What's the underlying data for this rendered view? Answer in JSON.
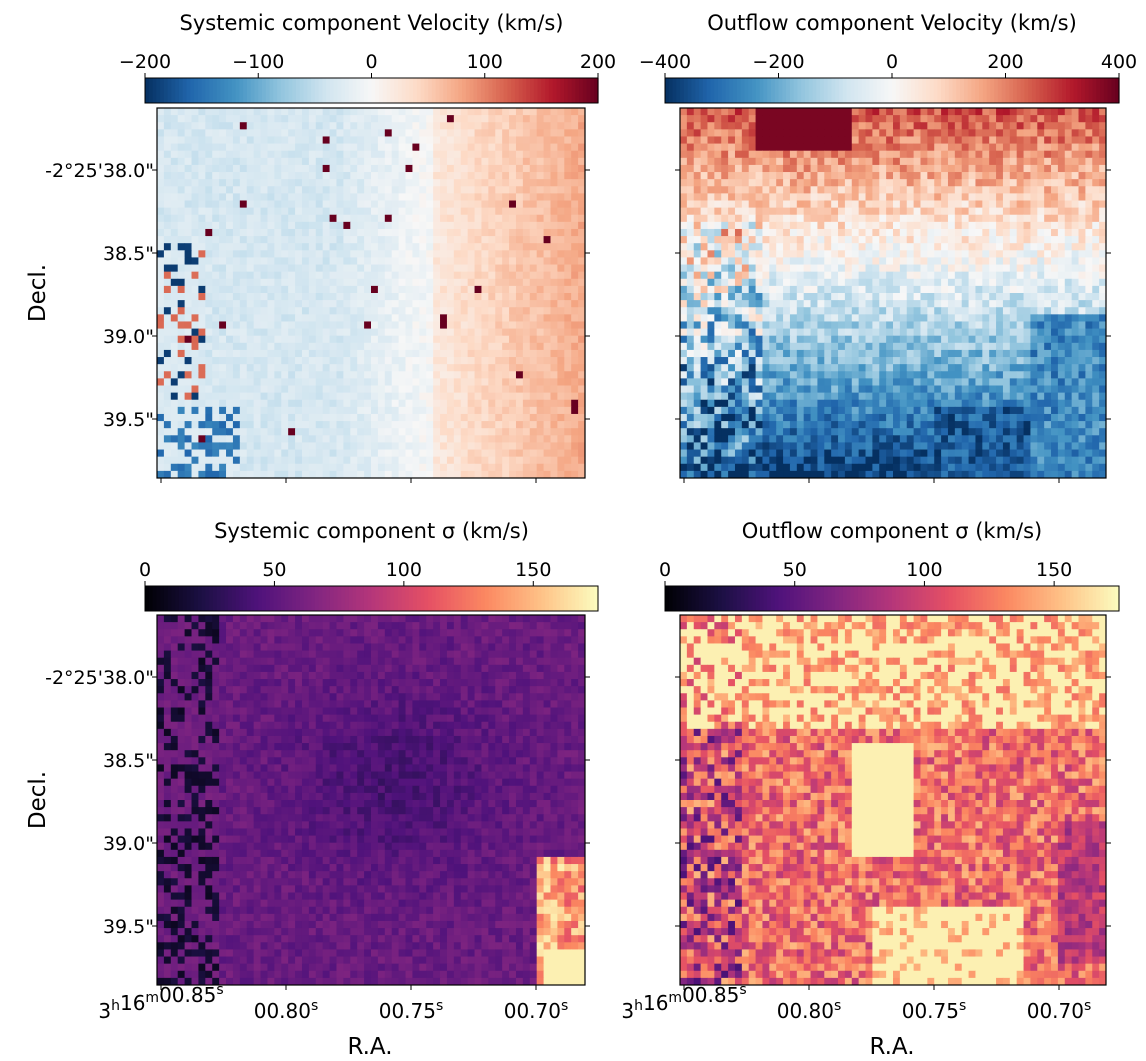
{
  "chart_data": [
    {
      "type": "heatmap",
      "title": "Systemic component Velocity (km/s)",
      "colormap": "RdBu_r",
      "colorbar": {
        "ticks": [
          "−200",
          "−100",
          "0",
          "100",
          "200"
        ],
        "range": [
          -200,
          200
        ]
      },
      "xlabel": "",
      "ylabel": "Decl.",
      "yticks": [
        "-2°25'38.0\"",
        "38.5\"",
        "39.0\"",
        "39.5\""
      ],
      "xticks": [],
      "pattern": "systemic-velocity"
    },
    {
      "type": "heatmap",
      "title": "Outflow component Velocity (km/s)",
      "colormap": "RdBu_r",
      "colorbar": {
        "ticks": [
          "−400",
          "−200",
          "0",
          "200",
          "400"
        ],
        "range": [
          -400,
          400
        ]
      },
      "xlabel": "",
      "ylabel": "",
      "yticks": [],
      "xticks": [],
      "pattern": "outflow-velocity"
    },
    {
      "type": "heatmap",
      "title": "Systemic component σ (km/s)",
      "colormap": "magma",
      "colorbar": {
        "ticks": [
          "0",
          "50",
          "100",
          "150"
        ],
        "range": [
          0,
          175
        ]
      },
      "xlabel": "R.A.",
      "ylabel": "Decl.",
      "yticks": [
        "-2°25'38.0\"",
        "38.5\"",
        "39.0\"",
        "39.5\""
      ],
      "xticks": [
        "3h16m00.85s",
        "00.80s",
        "00.75s",
        "00.70s"
      ],
      "pattern": "systemic-sigma"
    },
    {
      "type": "heatmap",
      "title": "Outflow component σ (km/s)",
      "colormap": "magma",
      "colorbar": {
        "ticks": [
          "0",
          "50",
          "100",
          "150"
        ],
        "range": [
          0,
          175
        ]
      },
      "xlabel": "R.A.",
      "ylabel": "",
      "yticks": [],
      "xticks": [
        "3h16m00.85s",
        "00.80s",
        "00.75s",
        "00.70s"
      ],
      "pattern": "outflow-sigma"
    }
  ],
  "colors": {
    "RdBu_r": [
      "#053061",
      "#2166ac",
      "#4393c3",
      "#92c5de",
      "#d1e5f0",
      "#f7f7f7",
      "#fddbc7",
      "#f4a582",
      "#d6604d",
      "#b2182b",
      "#67001f"
    ],
    "magma": [
      "#000004",
      "#1c1044",
      "#4f127b",
      "#812581",
      "#b5367a",
      "#e55064",
      "#fb8761",
      "#fec287",
      "#fcfdbf"
    ]
  }
}
